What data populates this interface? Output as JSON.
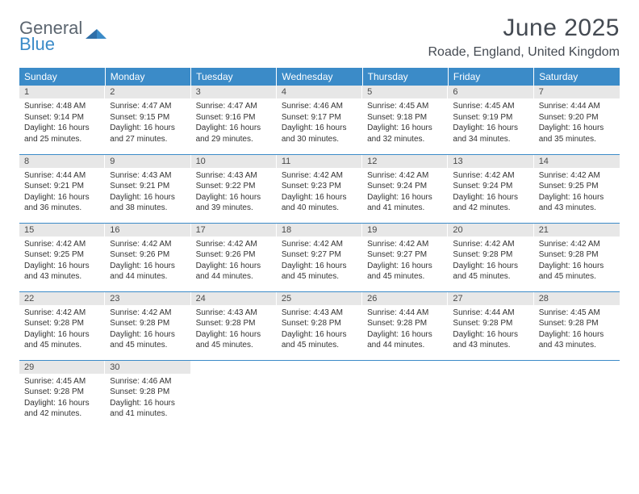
{
  "logo": {
    "line1": "General",
    "line2": "Blue"
  },
  "title": "June 2025",
  "location": "Roade, England, United Kingdom",
  "colors": {
    "header_bg": "#3b8bc8",
    "header_text": "#ffffff",
    "daynum_bg": "#e7e7e7",
    "rule": "#3b8bc8",
    "body_text": "#333333",
    "title_text": "#444a52"
  },
  "weekdays": [
    "Sunday",
    "Monday",
    "Tuesday",
    "Wednesday",
    "Thursday",
    "Friday",
    "Saturday"
  ],
  "weeks": [
    [
      {
        "n": "1",
        "sr": "4:48 AM",
        "ss": "9:14 PM",
        "dl": "16 hours and 25 minutes."
      },
      {
        "n": "2",
        "sr": "4:47 AM",
        "ss": "9:15 PM",
        "dl": "16 hours and 27 minutes."
      },
      {
        "n": "3",
        "sr": "4:47 AM",
        "ss": "9:16 PM",
        "dl": "16 hours and 29 minutes."
      },
      {
        "n": "4",
        "sr": "4:46 AM",
        "ss": "9:17 PM",
        "dl": "16 hours and 30 minutes."
      },
      {
        "n": "5",
        "sr": "4:45 AM",
        "ss": "9:18 PM",
        "dl": "16 hours and 32 minutes."
      },
      {
        "n": "6",
        "sr": "4:45 AM",
        "ss": "9:19 PM",
        "dl": "16 hours and 34 minutes."
      },
      {
        "n": "7",
        "sr": "4:44 AM",
        "ss": "9:20 PM",
        "dl": "16 hours and 35 minutes."
      }
    ],
    [
      {
        "n": "8",
        "sr": "4:44 AM",
        "ss": "9:21 PM",
        "dl": "16 hours and 36 minutes."
      },
      {
        "n": "9",
        "sr": "4:43 AM",
        "ss": "9:21 PM",
        "dl": "16 hours and 38 minutes."
      },
      {
        "n": "10",
        "sr": "4:43 AM",
        "ss": "9:22 PM",
        "dl": "16 hours and 39 minutes."
      },
      {
        "n": "11",
        "sr": "4:42 AM",
        "ss": "9:23 PM",
        "dl": "16 hours and 40 minutes."
      },
      {
        "n": "12",
        "sr": "4:42 AM",
        "ss": "9:24 PM",
        "dl": "16 hours and 41 minutes."
      },
      {
        "n": "13",
        "sr": "4:42 AM",
        "ss": "9:24 PM",
        "dl": "16 hours and 42 minutes."
      },
      {
        "n": "14",
        "sr": "4:42 AM",
        "ss": "9:25 PM",
        "dl": "16 hours and 43 minutes."
      }
    ],
    [
      {
        "n": "15",
        "sr": "4:42 AM",
        "ss": "9:25 PM",
        "dl": "16 hours and 43 minutes."
      },
      {
        "n": "16",
        "sr": "4:42 AM",
        "ss": "9:26 PM",
        "dl": "16 hours and 44 minutes."
      },
      {
        "n": "17",
        "sr": "4:42 AM",
        "ss": "9:26 PM",
        "dl": "16 hours and 44 minutes."
      },
      {
        "n": "18",
        "sr": "4:42 AM",
        "ss": "9:27 PM",
        "dl": "16 hours and 45 minutes."
      },
      {
        "n": "19",
        "sr": "4:42 AM",
        "ss": "9:27 PM",
        "dl": "16 hours and 45 minutes."
      },
      {
        "n": "20",
        "sr": "4:42 AM",
        "ss": "9:28 PM",
        "dl": "16 hours and 45 minutes."
      },
      {
        "n": "21",
        "sr": "4:42 AM",
        "ss": "9:28 PM",
        "dl": "16 hours and 45 minutes."
      }
    ],
    [
      {
        "n": "22",
        "sr": "4:42 AM",
        "ss": "9:28 PM",
        "dl": "16 hours and 45 minutes."
      },
      {
        "n": "23",
        "sr": "4:42 AM",
        "ss": "9:28 PM",
        "dl": "16 hours and 45 minutes."
      },
      {
        "n": "24",
        "sr": "4:43 AM",
        "ss": "9:28 PM",
        "dl": "16 hours and 45 minutes."
      },
      {
        "n": "25",
        "sr": "4:43 AM",
        "ss": "9:28 PM",
        "dl": "16 hours and 45 minutes."
      },
      {
        "n": "26",
        "sr": "4:44 AM",
        "ss": "9:28 PM",
        "dl": "16 hours and 44 minutes."
      },
      {
        "n": "27",
        "sr": "4:44 AM",
        "ss": "9:28 PM",
        "dl": "16 hours and 43 minutes."
      },
      {
        "n": "28",
        "sr": "4:45 AM",
        "ss": "9:28 PM",
        "dl": "16 hours and 43 minutes."
      }
    ],
    [
      {
        "n": "29",
        "sr": "4:45 AM",
        "ss": "9:28 PM",
        "dl": "16 hours and 42 minutes."
      },
      {
        "n": "30",
        "sr": "4:46 AM",
        "ss": "9:28 PM",
        "dl": "16 hours and 41 minutes."
      },
      null,
      null,
      null,
      null,
      null
    ]
  ],
  "labels": {
    "sunrise": "Sunrise:",
    "sunset": "Sunset:",
    "daylight": "Daylight:"
  }
}
